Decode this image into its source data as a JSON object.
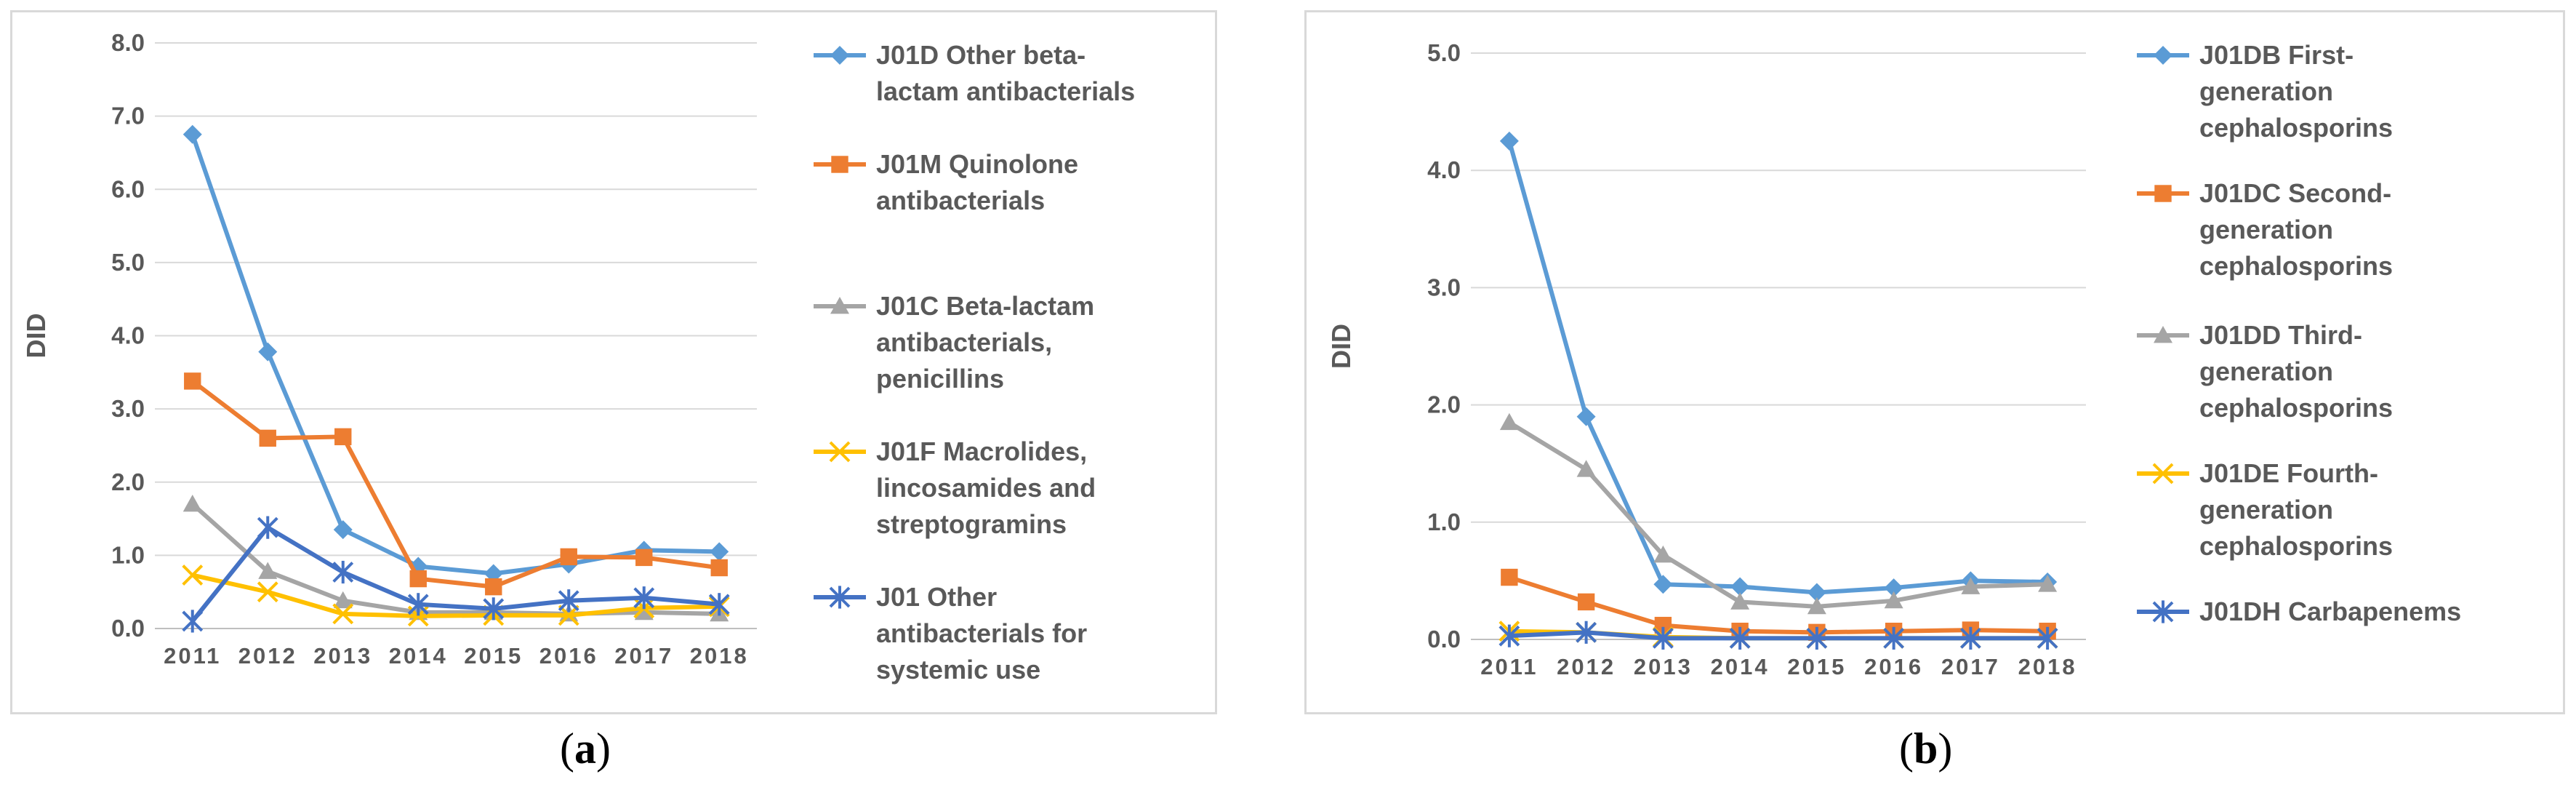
{
  "chart_data": [
    {
      "type": "line",
      "panel_label": "a",
      "caption": {
        "open": "(",
        "letter": "a",
        "close": ")"
      },
      "ylabel": "DID",
      "ylim": [
        0,
        8
      ],
      "ytick_labels": [
        "0.0",
        "1.0",
        "2.0",
        "3.0",
        "4.0",
        "5.0",
        "6.0",
        "7.0",
        "8.0"
      ],
      "categories": [
        "2011",
        "2012",
        "2013",
        "2014",
        "2015",
        "2016",
        "2017",
        "2018"
      ],
      "legend_position": "right",
      "series": [
        {
          "name": "J01D Other beta-lactam antibacterials",
          "legend_lines": [
            "J01D Other beta-",
            "lactam antibacterials"
          ],
          "color": "#5b9bd5",
          "marker": "diamond",
          "values": [
            6.75,
            3.78,
            1.35,
            0.85,
            0.75,
            0.88,
            1.07,
            1.05
          ]
        },
        {
          "name": "J01M Quinolone antibacterials",
          "legend_lines": [
            "J01M Quinolone",
            "antibacterials"
          ],
          "color": "#ed7d31",
          "marker": "square",
          "values": [
            3.38,
            2.6,
            2.62,
            0.68,
            0.57,
            0.98,
            0.97,
            0.83
          ]
        },
        {
          "name": "J01C Beta-lactam antibacterials, penicillins",
          "legend_lines": [
            "J01C Beta-lactam",
            "antibacterials,",
            "penicillins"
          ],
          "color": "#a5a5a5",
          "marker": "triangle",
          "values": [
            1.7,
            0.78,
            0.38,
            0.22,
            0.22,
            0.2,
            0.22,
            0.2
          ]
        },
        {
          "name": "J01F Macrolides, lincosamides and streptogramins",
          "legend_lines": [
            "J01F Macrolides,",
            "lincosamides and",
            "streptogramins"
          ],
          "color": "#ffc000",
          "marker": "x",
          "values": [
            0.73,
            0.5,
            0.2,
            0.17,
            0.18,
            0.18,
            0.28,
            0.3
          ]
        },
        {
          "name": "J01 Other antibacterials for systemic use",
          "legend_lines": [
            "J01 Other",
            "antibacterials for",
            "systemic use"
          ],
          "color": "#4472c4",
          "marker": "star",
          "values": [
            0.1,
            1.38,
            0.77,
            0.33,
            0.27,
            0.38,
            0.42,
            0.33
          ]
        }
      ]
    },
    {
      "type": "line",
      "panel_label": "b",
      "caption": {
        "open": "(",
        "letter": "b",
        "close": ")"
      },
      "ylabel": "DID",
      "ylim": [
        0,
        5
      ],
      "ytick_labels": [
        "0.0",
        "1.0",
        "2.0",
        "3.0",
        "4.0",
        "5.0"
      ],
      "categories": [
        "2011",
        "2012",
        "2013",
        "2014",
        "2015",
        "2016",
        "2017",
        "2018"
      ],
      "legend_position": "right",
      "series": [
        {
          "name": "J01DB First-generation cephalosporins",
          "legend_lines": [
            "J01DB  First-",
            "generation",
            "cephalosporins"
          ],
          "color": "#5b9bd5",
          "marker": "diamond",
          "values": [
            4.25,
            1.9,
            0.47,
            0.45,
            0.4,
            0.44,
            0.5,
            0.49
          ]
        },
        {
          "name": "J01DC Second-generation cephalosporins",
          "legend_lines": [
            "J01DC  Second-",
            "generation",
            "cephalosporins"
          ],
          "color": "#ed7d31",
          "marker": "square",
          "values": [
            0.53,
            0.32,
            0.12,
            0.07,
            0.06,
            0.07,
            0.08,
            0.07
          ]
        },
        {
          "name": "J01DD Third-generation cephalosporins",
          "legend_lines": [
            "J01DD  Third-",
            "generation",
            "cephalosporins"
          ],
          "color": "#a5a5a5",
          "marker": "triangle",
          "values": [
            1.85,
            1.45,
            0.72,
            0.32,
            0.28,
            0.33,
            0.45,
            0.47
          ]
        },
        {
          "name": "J01DE Fourth-generation cephalosporins",
          "legend_lines": [
            "J01DE  Fourth-",
            "generation",
            "cephalosporins"
          ],
          "color": "#ffc000",
          "marker": "x",
          "values": [
            0.07,
            0.06,
            0.02,
            0.01,
            0.01,
            0.01,
            0.01,
            0.01
          ]
        },
        {
          "name": "J01DH Carbapenems",
          "legend_lines": [
            "J01DH  Carbapenems"
          ],
          "color": "#4472c4",
          "marker": "star",
          "values": [
            0.03,
            0.06,
            0.01,
            0.01,
            0.01,
            0.01,
            0.01,
            0.01
          ]
        }
      ]
    }
  ]
}
